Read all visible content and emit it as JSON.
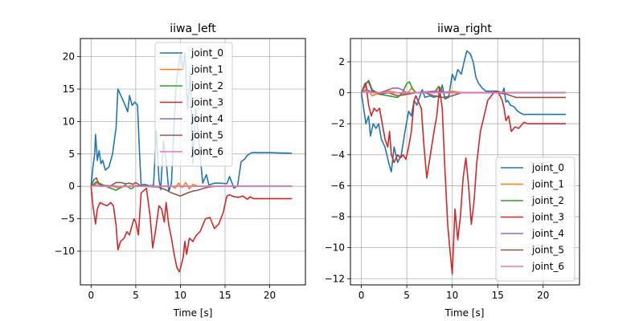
{
  "colors": {
    "joint_0": "#1f77b4",
    "joint_1": "#ff7f0e",
    "joint_2": "#2ca02c",
    "joint_3": "#d62728",
    "joint_4": "#9467bd",
    "joint_5": "#8c564b",
    "joint_6": "#e377c2",
    "grid": "#b0b0b0",
    "axis": "#000000",
    "legend_edge": "#cccccc"
  },
  "chart_data": [
    {
      "type": "line",
      "title": "iiwa_left",
      "xlabel": "Time [s]",
      "ylabel": "",
      "xlim": [
        -1.2,
        24.0
      ],
      "ylim": [
        -15.2,
        22.8
      ],
      "xticks": [
        0,
        5,
        10,
        15,
        20
      ],
      "xtick_labels": [
        "0",
        "5",
        "10",
        "15",
        "20"
      ],
      "yticks": [
        -10,
        -5,
        0,
        5,
        10,
        15,
        20
      ],
      "ytick_labels": [
        "−10",
        "−5",
        "0",
        "5",
        "10",
        "15",
        "20"
      ],
      "grid": true,
      "legend_loc": "upper-center",
      "series": [
        {
          "name": "joint_0",
          "x": [
            0,
            0.2,
            0.4,
            0.5,
            0.7,
            0.9,
            1.1,
            1.3,
            1.6,
            2.0,
            2.4,
            2.8,
            3.0,
            3.5,
            3.8,
            4.1,
            4.3,
            4.6,
            4.9,
            5.2,
            5.4,
            5.6,
            6.0,
            6.5,
            6.8,
            7.0,
            7.3,
            7.6,
            7.8,
            8.1,
            8.4,
            8.7,
            9.0,
            9.5,
            10.0,
            10.3,
            10.5,
            10.8,
            11.1,
            11.4,
            11.7,
            12.0,
            12.5,
            12.9,
            13.2,
            13.8,
            14.5,
            15.2,
            15.5,
            15.7,
            16.0,
            16.4,
            16.8,
            17.2,
            17.5,
            18.0,
            20.0,
            22.5
          ],
          "y": [
            0,
            3.0,
            5.0,
            8.0,
            4.0,
            5.5,
            3.5,
            4.0,
            2.5,
            3.0,
            5.0,
            9.0,
            15.0,
            13.5,
            12.5,
            11.5,
            14.0,
            12.5,
            13.0,
            12.5,
            6.0,
            0.2,
            0.3,
            0.1,
            0.1,
            0.2,
            8.5,
            1.0,
            -0.5,
            7.0,
            4.0,
            -0.8,
            0.5,
            15.5,
            20.5,
            18.0,
            20.5,
            12.0,
            17.5,
            3.5,
            12.0,
            8.0,
            0.5,
            1.8,
            0.2,
            0.5,
            0.5,
            0.4,
            1.5,
            0.8,
            -0.3,
            0.1,
            3.8,
            4.2,
            4.8,
            5.2,
            5.2,
            5.1
          ]
        },
        {
          "name": "joint_1",
          "x": [
            0,
            0.6,
            1.2,
            2.0,
            3.0,
            4.0,
            5.0,
            6.0,
            7.0,
            8.0,
            9.0,
            9.4,
            9.8,
            10.2,
            10.6,
            11.0,
            11.4,
            12.0,
            13.0,
            15.0,
            17.0,
            22.5
          ],
          "y": [
            0,
            0.5,
            0.2,
            0.1,
            -0.2,
            0.0,
            0.1,
            0.0,
            -0.1,
            0.0,
            0.1,
            -0.3,
            0.5,
            -0.2,
            0.6,
            -0.4,
            0.3,
            0.0,
            0.0,
            0.0,
            0.0,
            0.0
          ]
        },
        {
          "name": "joint_2",
          "x": [
            0,
            0.6,
            1.2,
            2.0,
            2.8,
            3.2,
            3.8,
            4.5,
            5.0,
            5.5,
            6.0,
            8.0,
            10.0,
            12.0,
            15.0,
            22.5
          ],
          "y": [
            0,
            0.7,
            0.3,
            -0.2,
            -0.6,
            -0.3,
            0.2,
            -0.4,
            0.1,
            0.0,
            0.0,
            0.0,
            0.0,
            0.0,
            0.0,
            0.0
          ]
        },
        {
          "name": "joint_3",
          "x": [
            0,
            0.2,
            0.5,
            0.7,
            1.0,
            1.4,
            1.8,
            2.2,
            2.5,
            2.8,
            3.0,
            3.3,
            3.7,
            4.0,
            4.3,
            4.6,
            4.8,
            5.0,
            5.3,
            5.6,
            6.2,
            6.6,
            6.9,
            7.2,
            7.6,
            7.9,
            8.2,
            8.4,
            8.7,
            9.0,
            9.3,
            9.6,
            9.9,
            10.3,
            10.5,
            10.7,
            11.0,
            11.4,
            11.8,
            12.2,
            12.8,
            13.3,
            13.8,
            14.3,
            14.8,
            15.2,
            15.5,
            16.0,
            16.5,
            17.0,
            17.5,
            17.8,
            18.2,
            20.0,
            22.5
          ],
          "y": [
            0,
            -3.0,
            -5.8,
            -3.5,
            -2.5,
            -2.8,
            -3.0,
            -2.5,
            -3.0,
            -6.0,
            -9.8,
            -8.5,
            -8.0,
            -7.0,
            -7.5,
            -6.0,
            -5.0,
            -5.5,
            -7.5,
            -1.0,
            -0.3,
            -4.5,
            -9.5,
            -7.0,
            -3.0,
            -3.5,
            -5.5,
            -2.5,
            -6.0,
            -8.0,
            -10.5,
            -12.5,
            -13.2,
            -11.0,
            -8.5,
            -10.5,
            -8.0,
            -8.5,
            -7.5,
            -7.0,
            -5.0,
            -4.8,
            -6.5,
            -5.8,
            -4.0,
            -1.5,
            -1.3,
            -1.6,
            -1.7,
            -1.5,
            -2.0,
            -1.6,
            -1.9,
            -1.9,
            -1.9
          ]
        },
        {
          "name": "joint_4",
          "x": [
            0,
            0.5,
            1.0,
            2.0,
            3.0,
            5.0,
            8.0,
            10.0,
            12.0,
            15.0,
            22.5
          ],
          "y": [
            0,
            0.2,
            0.0,
            0.1,
            0.0,
            0.0,
            0.0,
            0.0,
            0.0,
            0.0,
            0.0
          ]
        },
        {
          "name": "joint_5",
          "x": [
            0,
            0.3,
            0.6,
            0.9,
            1.3,
            2.0,
            2.8,
            3.3,
            3.9,
            4.3,
            4.7,
            5.0,
            5.5,
            6.5,
            7.5,
            8.3,
            9.0,
            9.6,
            10.0,
            10.5,
            11.0,
            11.5,
            12.0,
            12.6,
            13.2,
            14.0,
            15.0,
            16.0,
            22.5
          ],
          "y": [
            0,
            1.0,
            1.3,
            0.3,
            0.1,
            -0.1,
            0.6,
            0.6,
            0.4,
            0.5,
            0.3,
            0.6,
            0.1,
            0.0,
            -0.1,
            -0.5,
            -1.0,
            -1.3,
            -1.5,
            -1.2,
            -0.9,
            -0.7,
            -0.6,
            -0.3,
            -0.1,
            0.0,
            0.0,
            0.0,
            0.0
          ]
        },
        {
          "name": "joint_6",
          "x": [
            0,
            0.5,
            1.0,
            2.0,
            5.0,
            10.0,
            15.0,
            22.5
          ],
          "y": [
            0,
            0.1,
            0.0,
            0.0,
            0.0,
            0.0,
            0.0,
            0.0
          ]
        }
      ]
    },
    {
      "type": "line",
      "title": "iiwa_right",
      "xlabel": "Time [s]",
      "ylabel": "",
      "xlim": [
        -1.2,
        24.0
      ],
      "ylim": [
        -12.4,
        3.5
      ],
      "xticks": [
        0,
        5,
        10,
        15,
        20
      ],
      "xtick_labels": [
        "0",
        "5",
        "10",
        "15",
        "20"
      ],
      "yticks": [
        -12,
        -10,
        -8,
        -6,
        -4,
        -2,
        0,
        2
      ],
      "ytick_labels": [
        "−12",
        "−10",
        "−8",
        "−6",
        "−4",
        "−2",
        "0",
        "2"
      ],
      "grid": true,
      "legend_loc": "lower-right",
      "series": [
        {
          "name": "joint_0",
          "x": [
            0,
            0.3,
            0.5,
            0.8,
            1.0,
            1.3,
            1.6,
            1.9,
            2.2,
            2.6,
            3.0,
            3.3,
            3.6,
            4.0,
            4.4,
            4.8,
            5.2,
            5.5,
            5.8,
            6.1,
            6.4,
            6.7,
            7.0,
            7.5,
            8.0,
            8.3,
            8.6,
            8.9,
            9.2,
            9.6,
            10.0,
            10.3,
            10.6,
            11.0,
            11.3,
            11.6,
            12.0,
            12.3,
            12.6,
            12.9,
            13.3,
            13.7,
            14.2,
            14.6,
            15.0,
            15.5,
            15.7,
            15.9,
            16.1,
            16.4,
            16.8,
            17.2,
            17.8,
            18.5,
            20.0,
            22.5
          ],
          "y": [
            0,
            -1.2,
            -2.0,
            -1.5,
            -2.8,
            -2.0,
            -2.3,
            -2.0,
            -3.0,
            -3.5,
            -4.5,
            -5.1,
            -3.5,
            -4.5,
            -4.0,
            -2.5,
            -1.2,
            -1.5,
            -0.5,
            -0.8,
            -0.3,
            0.2,
            -0.3,
            -0.2,
            -0.3,
            -0.2,
            -0.3,
            0.5,
            -0.4,
            -0.3,
            1.2,
            0.8,
            1.5,
            1.2,
            2.0,
            2.7,
            2.5,
            2.0,
            1.0,
            0.6,
            0.3,
            0.1,
            0.1,
            0.1,
            0.1,
            0.0,
            0.3,
            -0.6,
            -0.5,
            -0.8,
            -0.9,
            -1.2,
            -1.4,
            -1.4,
            -1.4,
            -1.4
          ]
        },
        {
          "name": "joint_1",
          "x": [
            0,
            0.4,
            0.8,
            1.2,
            2.0,
            3.0,
            4.0,
            5.0,
            5.5,
            6.0,
            7.0,
            8.0,
            8.6,
            9.0,
            10.0,
            11.0,
            12.0,
            13.0,
            15.0,
            22.5
          ],
          "y": [
            0,
            0.4,
            0.1,
            -0.2,
            0.0,
            0.1,
            0.0,
            -0.1,
            0.3,
            0.0,
            0.0,
            0.0,
            0.4,
            0.0,
            0.1,
            0.0,
            0.0,
            0.0,
            0.0,
            0.0
          ]
        },
        {
          "name": "joint_2",
          "x": [
            0,
            0.4,
            0.8,
            1.2,
            2.0,
            3.0,
            4.0,
            4.5,
            5.0,
            5.3,
            5.6,
            6.0,
            7.0,
            8.0,
            8.5,
            9.0,
            10.0,
            12.0,
            15.0,
            16.0,
            22.5
          ],
          "y": [
            0,
            0.5,
            0.8,
            0.2,
            -0.1,
            -0.2,
            -0.3,
            0.0,
            0.6,
            0.7,
            0.3,
            0.0,
            0.0,
            0.0,
            0.4,
            0.0,
            0.0,
            0.0,
            0.0,
            0.0,
            0.0
          ]
        },
        {
          "name": "joint_3",
          "x": [
            0,
            0.3,
            0.5,
            0.8,
            1.1,
            1.4,
            1.7,
            2.0,
            2.3,
            2.6,
            2.9,
            3.1,
            3.3,
            3.6,
            4.0,
            4.3,
            4.6,
            4.9,
            5.2,
            5.5,
            5.8,
            6.0,
            6.3,
            6.6,
            6.9,
            7.2,
            7.6,
            8.0,
            8.3,
            8.6,
            8.9,
            9.2,
            9.5,
            9.8,
            10.0,
            10.3,
            10.6,
            10.9,
            11.2,
            11.5,
            11.8,
            12.1,
            12.4,
            12.7,
            13.1,
            13.5,
            13.9,
            14.3,
            14.7,
            15.1,
            15.5,
            15.7,
            15.9,
            16.2,
            16.5,
            16.9,
            17.3,
            17.6,
            17.9,
            18.3,
            20.0,
            22.5
          ],
          "y": [
            0,
            0.4,
            0.6,
            -0.8,
            -1.5,
            -1.0,
            -1.2,
            -1.0,
            -2.0,
            -3.0,
            -3.5,
            -2.5,
            -4.0,
            -4.5,
            -4.0,
            -4.2,
            -4.0,
            -4.3,
            -3.5,
            -2.5,
            -0.5,
            -0.2,
            -0.6,
            -1.0,
            -3.5,
            -5.5,
            -4.0,
            -2.5,
            -1.5,
            0.3,
            -1.0,
            -5.0,
            -8.5,
            -10.5,
            -11.7,
            -7.5,
            -9.5,
            -8.0,
            -5.5,
            -4.2,
            -6.0,
            -8.5,
            -7.0,
            -4.5,
            -2.5,
            -1.5,
            -0.5,
            -0.2,
            0.1,
            0.0,
            -0.5,
            -1.0,
            -1.8,
            -1.5,
            -2.5,
            -2.2,
            -2.3,
            -2.1,
            -1.9,
            -2.0,
            -2.0,
            -2.0
          ]
        },
        {
          "name": "joint_4",
          "x": [
            0,
            0.5,
            1.0,
            2.0,
            3.0,
            3.5,
            4.0,
            4.5,
            5.0,
            6.0,
            8.0,
            10.0,
            12.0,
            15.0,
            22.5
          ],
          "y": [
            0,
            0.2,
            0.1,
            0.0,
            0.2,
            0.3,
            0.3,
            0.2,
            0.0,
            0.0,
            0.1,
            0.0,
            0.0,
            0.0,
            0.0
          ]
        },
        {
          "name": "joint_5",
          "x": [
            0,
            0.4,
            0.8,
            1.2,
            2.0,
            3.0,
            4.0,
            5.0,
            6.0,
            7.0,
            8.0,
            9.0,
            10.0,
            11.0,
            12.0,
            13.0,
            14.0,
            15.0,
            16.0,
            17.0,
            18.0,
            20.0,
            22.5
          ],
          "y": [
            0,
            0.6,
            0.7,
            0.1,
            -0.1,
            0.0,
            -0.2,
            -0.1,
            0.0,
            0.0,
            -0.2,
            -0.3,
            -0.2,
            0.0,
            0.0,
            0.0,
            0.0,
            0.0,
            -0.1,
            -0.3,
            -0.3,
            -0.3,
            -0.3
          ]
        },
        {
          "name": "joint_6",
          "x": [
            0,
            0.5,
            1.0,
            2.0,
            5.0,
            10.0,
            15.0,
            22.5
          ],
          "y": [
            0,
            0.1,
            0.0,
            0.0,
            0.0,
            0.0,
            0.0,
            0.0
          ]
        }
      ]
    }
  ]
}
